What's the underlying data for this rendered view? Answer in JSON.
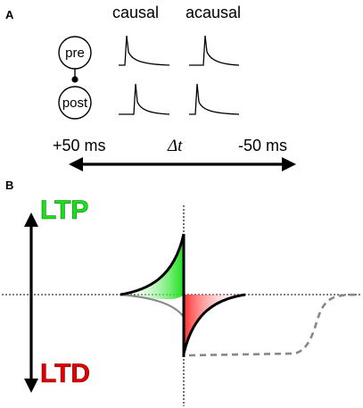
{
  "panel_a": {
    "label": "A",
    "columns": {
      "causal": "causal",
      "acausal": "acausal"
    },
    "neurons": {
      "pre": "pre",
      "post": "post"
    },
    "axis": {
      "left": "+50 ms",
      "middle": "Δt",
      "right": "-50 ms"
    }
  },
  "panel_b": {
    "label": "B",
    "ltp": "LTP",
    "ltd": "LTD"
  },
  "colors": {
    "ltp_fill": "#19e019",
    "ltd_fill": "#ff3030",
    "curve": "#000000",
    "dashed_curve": "#888888"
  }
}
